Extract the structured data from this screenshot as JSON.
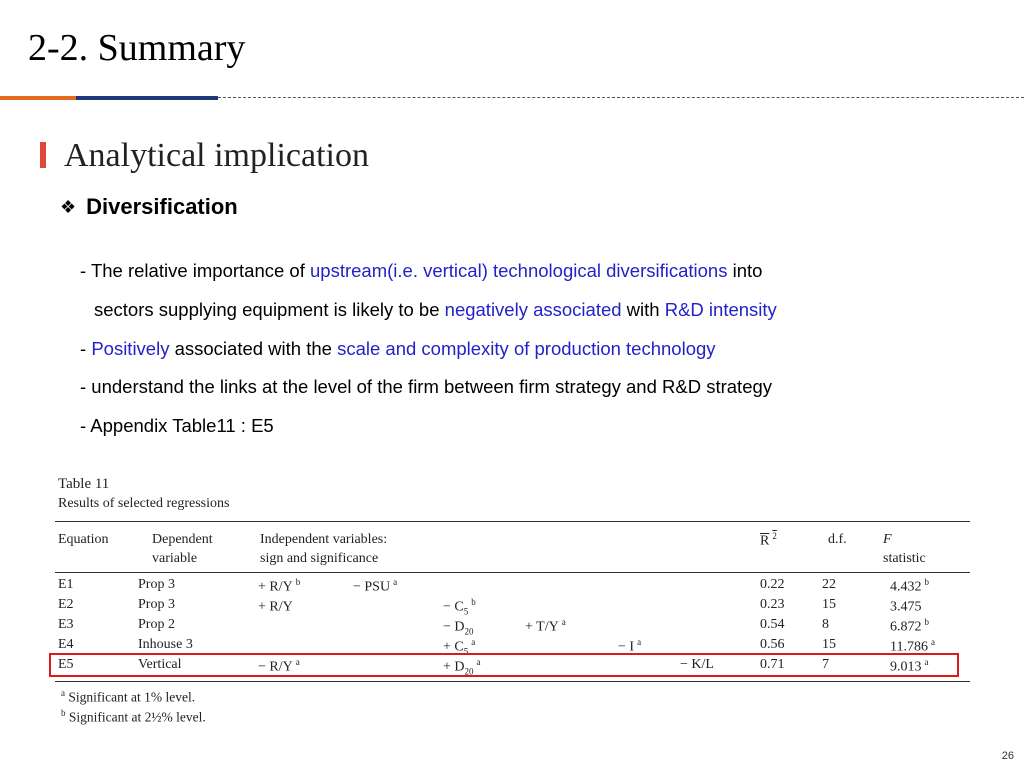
{
  "slide": {
    "title": "2-2. Summary",
    "page_number": "26",
    "accent_orange": "#e56a1e",
    "accent_navy": "#1f3a7a",
    "section_bar_color": "#e0483a",
    "highlight_color": "#2222c8",
    "box_color": "#e01818"
  },
  "section": {
    "heading": "Analytical implication",
    "bullet_icon": "diamond-bullet-icon",
    "bullet_glyph": "❖",
    "bullet_label": "Diversification"
  },
  "body": {
    "line1": {
      "p1": "- The relative importance of ",
      "h1": "upstream(i.e. vertical) technological diversifications",
      "p2": " into"
    },
    "line2": {
      "p1": "sectors supplying equipment is likely to be ",
      "h1": "negatively associated",
      "p2": " with ",
      "h2": "R&D intensity"
    },
    "line3": {
      "p1": "- ",
      "h1": "Positively",
      "p2": " associated with the ",
      "h2": "scale and complexity of production technology"
    },
    "line4": "- understand the links at the level of the firm between firm strategy and R&D strategy",
    "line5": "- Appendix Table11 : E5"
  },
  "table": {
    "title": "Table 11",
    "subtitle": "Results of selected regressions",
    "headers": {
      "equation": "Equation",
      "dependent_1": "Dependent",
      "dependent_2": "variable",
      "independent_1": "Independent variables:",
      "independent_2": "sign and significance",
      "r2": "R",
      "r2_sup": "2",
      "df": "d.f.",
      "f_1": "F",
      "f_2": "statistic"
    },
    "rows": [
      {
        "eq": "E1",
        "dep": "Prop 3",
        "a": "+ R/Y",
        "a_sup": "b",
        "b": "− PSU",
        "b_sup": "a",
        "c": "",
        "c_sub": "",
        "c_sup": "",
        "d": "",
        "d_sup": "",
        "e": "",
        "e_sup": "",
        "f": "",
        "r2": "0.22",
        "df": "22",
        "F": "4.432",
        "F_sup": "b"
      },
      {
        "eq": "E2",
        "dep": "Prop 3",
        "a": "+ R/Y",
        "a_sup": "",
        "b": "",
        "b_sup": "",
        "c": "− C",
        "c_sub": "5",
        "c_sup": "b",
        "d": "",
        "d_sup": "",
        "e": "",
        "e_sup": "",
        "f": "",
        "r2": "0.23",
        "df": "15",
        "F": "3.475",
        "F_sup": ""
      },
      {
        "eq": "E3",
        "dep": "Prop 2",
        "a": "",
        "a_sup": "",
        "b": "",
        "b_sup": "",
        "c": "− D",
        "c_sub": "20",
        "c_sup": "",
        "d": "+ T/Y",
        "d_sup": "a",
        "e": "",
        "e_sup": "",
        "f": "",
        "r2": "0.54",
        "df": "8",
        "F": "6.872",
        "F_sup": "b"
      },
      {
        "eq": "E4",
        "dep": "Inhouse 3",
        "a": "",
        "a_sup": "",
        "b": "",
        "b_sup": "",
        "c": "+ C",
        "c_sub": "5",
        "c_sup": "a",
        "d": "",
        "d_sup": "",
        "e": "− I",
        "e_sup": "a",
        "f": "",
        "r2": "0.56",
        "df": "15",
        "F": "11.786",
        "F_sup": "a"
      },
      {
        "eq": "E5",
        "dep": "Vertical",
        "a": "− R/Y",
        "a_sup": "a",
        "b": "",
        "b_sup": "",
        "c": "+ D",
        "c_sub": "20",
        "c_sup": "a",
        "d": "",
        "d_sup": "",
        "e": "",
        "e_sup": "",
        "f": "− K/L",
        "r2": "0.71",
        "df": "7",
        "F": "9.013",
        "F_sup": "a"
      }
    ],
    "footnotes": [
      {
        "mark": "a",
        "text": "Significant at 1% level."
      },
      {
        "mark": "b",
        "text": "Significant  at 2½% level."
      }
    ]
  }
}
